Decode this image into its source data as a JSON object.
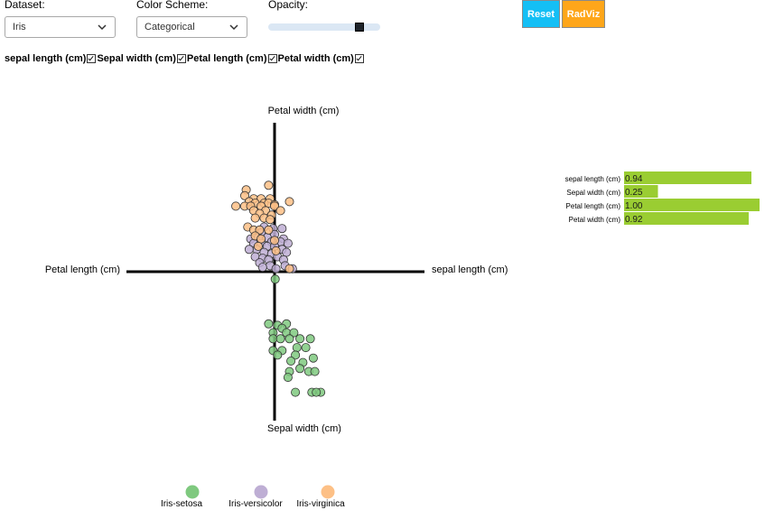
{
  "controls": {
    "dataset_label": "Dataset:",
    "dataset_value": "Iris",
    "color_scheme_label": "Color Scheme:",
    "color_scheme_value": "Categorical",
    "opacity_label": "Opacity:",
    "opacity_value": 0.85,
    "reset_label": "Reset",
    "radviz_label": "RadViz",
    "reset_color": "#14bff5",
    "radviz_color": "#fea61a"
  },
  "attributes": [
    {
      "label": "sepal length (cm)",
      "checked": true
    },
    {
      "label": "Sepal width (cm)",
      "checked": true
    },
    {
      "label": "Petal length (cm)",
      "checked": true
    },
    {
      "label": "Petal width (cm)",
      "checked": true
    }
  ],
  "chart_data": {
    "type": "scatter",
    "title": "",
    "axes": {
      "top": "Petal width (cm)",
      "bottom": "Sepal width (cm)",
      "left": "Petal length (cm)",
      "right": "sepal length (cm)"
    },
    "xlim": [
      -1,
      1
    ],
    "ylim": [
      -1,
      1
    ],
    "series": [
      {
        "name": "Iris-setosa",
        "color": "#7fc97f",
        "points": [
          [
            0.004,
            -0.05
          ],
          [
            -0.04,
            -0.35
          ],
          [
            0.02,
            -0.36
          ],
          [
            0.08,
            -0.35
          ],
          [
            0.05,
            -0.38
          ],
          [
            -0.01,
            -0.41
          ],
          [
            0.08,
            -0.41
          ],
          [
            0.13,
            -0.41
          ],
          [
            -0.01,
            -0.45
          ],
          [
            0.04,
            -0.45
          ],
          [
            0.1,
            -0.45
          ],
          [
            0.17,
            -0.45
          ],
          [
            0.24,
            -0.45
          ],
          [
            -0.01,
            -0.53
          ],
          [
            0.05,
            -0.53
          ],
          [
            0.15,
            -0.51
          ],
          [
            0.21,
            -0.51
          ],
          [
            0.02,
            -0.56
          ],
          [
            0.14,
            -0.56
          ],
          [
            0.11,
            -0.6
          ],
          [
            0.19,
            -0.61
          ],
          [
            0.26,
            -0.58
          ],
          [
            0.17,
            -0.65
          ],
          [
            0.23,
            -0.67
          ],
          [
            0.27,
            -0.67
          ],
          [
            0.1,
            -0.67
          ],
          [
            0.31,
            -0.81
          ],
          [
            0.14,
            -0.81
          ],
          [
            0.25,
            -0.81
          ],
          [
            0.28,
            -0.81
          ],
          [
            0.09,
            -0.71
          ]
        ]
      },
      {
        "name": "Iris-versicolor",
        "color": "#beaed4",
        "points": [
          [
            -0.07,
            0.3
          ],
          [
            -0.01,
            0.29
          ],
          [
            0.05,
            0.29
          ],
          [
            -0.09,
            0.26
          ],
          [
            0.0,
            0.25
          ],
          [
            -0.05,
            0.23
          ],
          [
            -0.11,
            0.23
          ],
          [
            0.06,
            0.22
          ],
          [
            -0.16,
            0.22
          ],
          [
            -0.02,
            0.2
          ],
          [
            0.04,
            0.2
          ],
          [
            -0.14,
            0.19
          ],
          [
            -0.09,
            0.19
          ],
          [
            0.09,
            0.19
          ],
          [
            -0.05,
            0.17
          ],
          [
            0.0,
            0.17
          ],
          [
            -0.12,
            0.15
          ],
          [
            -0.17,
            0.15
          ],
          [
            0.05,
            0.15
          ],
          [
            -0.07,
            0.13
          ],
          [
            0.08,
            0.13
          ],
          [
            -0.02,
            0.12
          ],
          [
            -0.13,
            0.1
          ],
          [
            0.02,
            0.1
          ],
          [
            -0.08,
            0.09
          ],
          [
            -0.04,
            0.08
          ],
          [
            0.06,
            0.08
          ],
          [
            -0.1,
            0.06
          ],
          [
            -0.03,
            0.04
          ],
          [
            0.07,
            0.04
          ],
          [
            -0.08,
            0.03
          ],
          [
            0.01,
            0.02
          ],
          [
            0.12,
            0.02
          ]
        ]
      },
      {
        "name": "Iris-virginica",
        "color": "#fdc086",
        "points": [
          [
            -0.04,
            0.58
          ],
          [
            -0.19,
            0.55
          ],
          [
            -0.2,
            0.51
          ],
          [
            -0.14,
            0.49
          ],
          [
            -0.09,
            0.49
          ],
          [
            -0.03,
            0.49
          ],
          [
            0.1,
            0.47
          ],
          [
            -0.17,
            0.47
          ],
          [
            -0.07,
            0.46
          ],
          [
            -0.13,
            0.46
          ],
          [
            -0.04,
            0.46
          ],
          [
            0.0,
            0.45
          ],
          [
            -0.26,
            0.44
          ],
          [
            -0.2,
            0.44
          ],
          [
            -0.16,
            0.44
          ],
          [
            -0.09,
            0.44
          ],
          [
            0.0,
            0.44
          ],
          [
            -0.14,
            0.41
          ],
          [
            -0.06,
            0.41
          ],
          [
            0.04,
            0.41
          ],
          [
            -0.1,
            0.39
          ],
          [
            -0.02,
            0.38
          ],
          [
            -0.13,
            0.36
          ],
          [
            -0.07,
            0.36
          ],
          [
            -0.03,
            0.35
          ],
          [
            -0.18,
            0.3
          ],
          [
            -0.14,
            0.28
          ],
          [
            -0.1,
            0.28
          ],
          [
            -0.04,
            0.28
          ],
          [
            -0.13,
            0.24
          ],
          [
            -0.09,
            0.22
          ],
          [
            -0.11,
            0.17
          ],
          [
            0.0,
            0.21
          ],
          [
            0.01,
            0.14
          ],
          [
            0.1,
            0.02
          ]
        ]
      }
    ],
    "weights": [
      {
        "label": "sepal length (cm)",
        "value": 0.94
      },
      {
        "label": "Sepal width (cm)",
        "value": 0.25
      },
      {
        "label": "Petal length (cm)",
        "value": 1.0
      },
      {
        "label": "Petal width (cm)",
        "value": 0.92
      }
    ],
    "weight_labels": [
      "0.94",
      "0.25",
      "1.00",
      "0.92"
    ],
    "weight_bar_color": "#9acd32",
    "legend": [
      {
        "label": "Iris-setosa",
        "color": "#7fc97f"
      },
      {
        "label": "Iris-versicolor",
        "color": "#beaed4"
      },
      {
        "label": "Iris-virginica",
        "color": "#fdc086"
      }
    ]
  }
}
